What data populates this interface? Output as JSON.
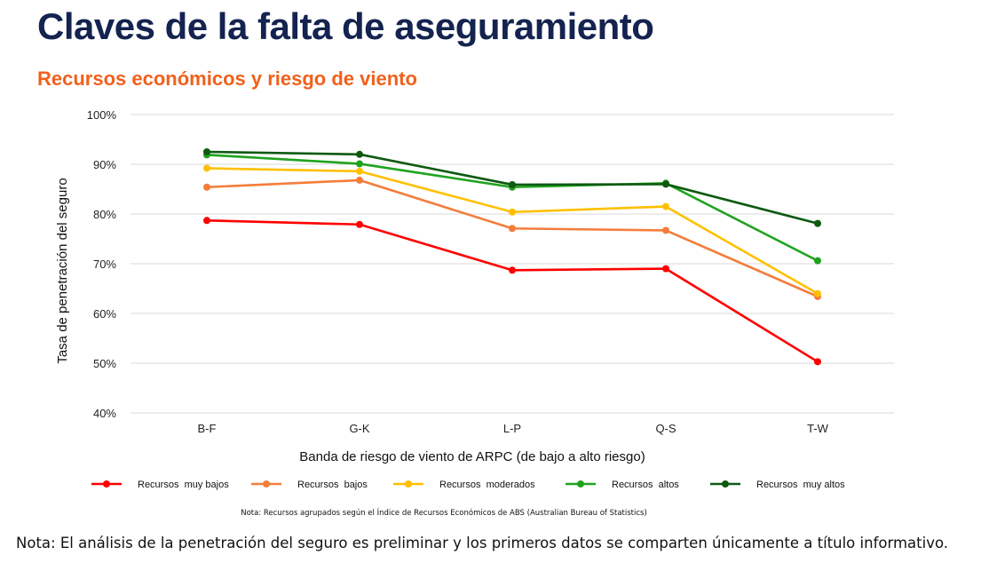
{
  "title": "Claves de la falta de aseguramiento",
  "subtitle": "Recursos económicos y riesgo de viento",
  "chart_data": {
    "type": "line",
    "categories": [
      "B-F",
      "G-K",
      "L-P",
      "Q-S",
      "T-W"
    ],
    "xlabel": "Banda de riesgo de viento de ARPC  (de bajo a alto riesgo)",
    "ylabel": "Tasa de penetración del seguro",
    "ylim": [
      40,
      100
    ],
    "yticks": [
      40,
      50,
      60,
      70,
      80,
      90,
      100
    ],
    "ytick_labels": [
      "40%",
      "50%",
      "60%",
      "70%",
      "80%",
      "90%",
      "100%"
    ],
    "grid": true,
    "legend_position": "bottom",
    "series": [
      {
        "name": "Recursos  muy bajos",
        "color": "#ff0000",
        "values": [
          78.7,
          77.9,
          68.7,
          69.0,
          50.3
        ]
      },
      {
        "name": "Recursos  bajos",
        "color": "#f47d3a",
        "values": [
          85.4,
          86.8,
          77.1,
          76.7,
          63.4
        ]
      },
      {
        "name": "Recursos  moderados",
        "color": "#ffc000",
        "values": [
          89.2,
          88.6,
          80.4,
          81.5,
          64.0
        ]
      },
      {
        "name": "Recursos  altos",
        "color": "#1fa31f",
        "values": [
          91.9,
          90.1,
          85.4,
          86.2,
          70.6
        ]
      },
      {
        "name": "Recursos  muy altos",
        "color": "#0e5a12",
        "values": [
          92.5,
          92.0,
          85.9,
          86.0,
          78.1
        ]
      }
    ]
  },
  "source_note": "Nota:  Recursos  agrupados  según  el  Índice de Recursos  Económicos  de ABS (Australian  Bureau  of Statistics)",
  "footer_note": "Nota: El análisis de la penetración del seguro es preliminar y los primeros datos se comparten únicamente a título informativo."
}
